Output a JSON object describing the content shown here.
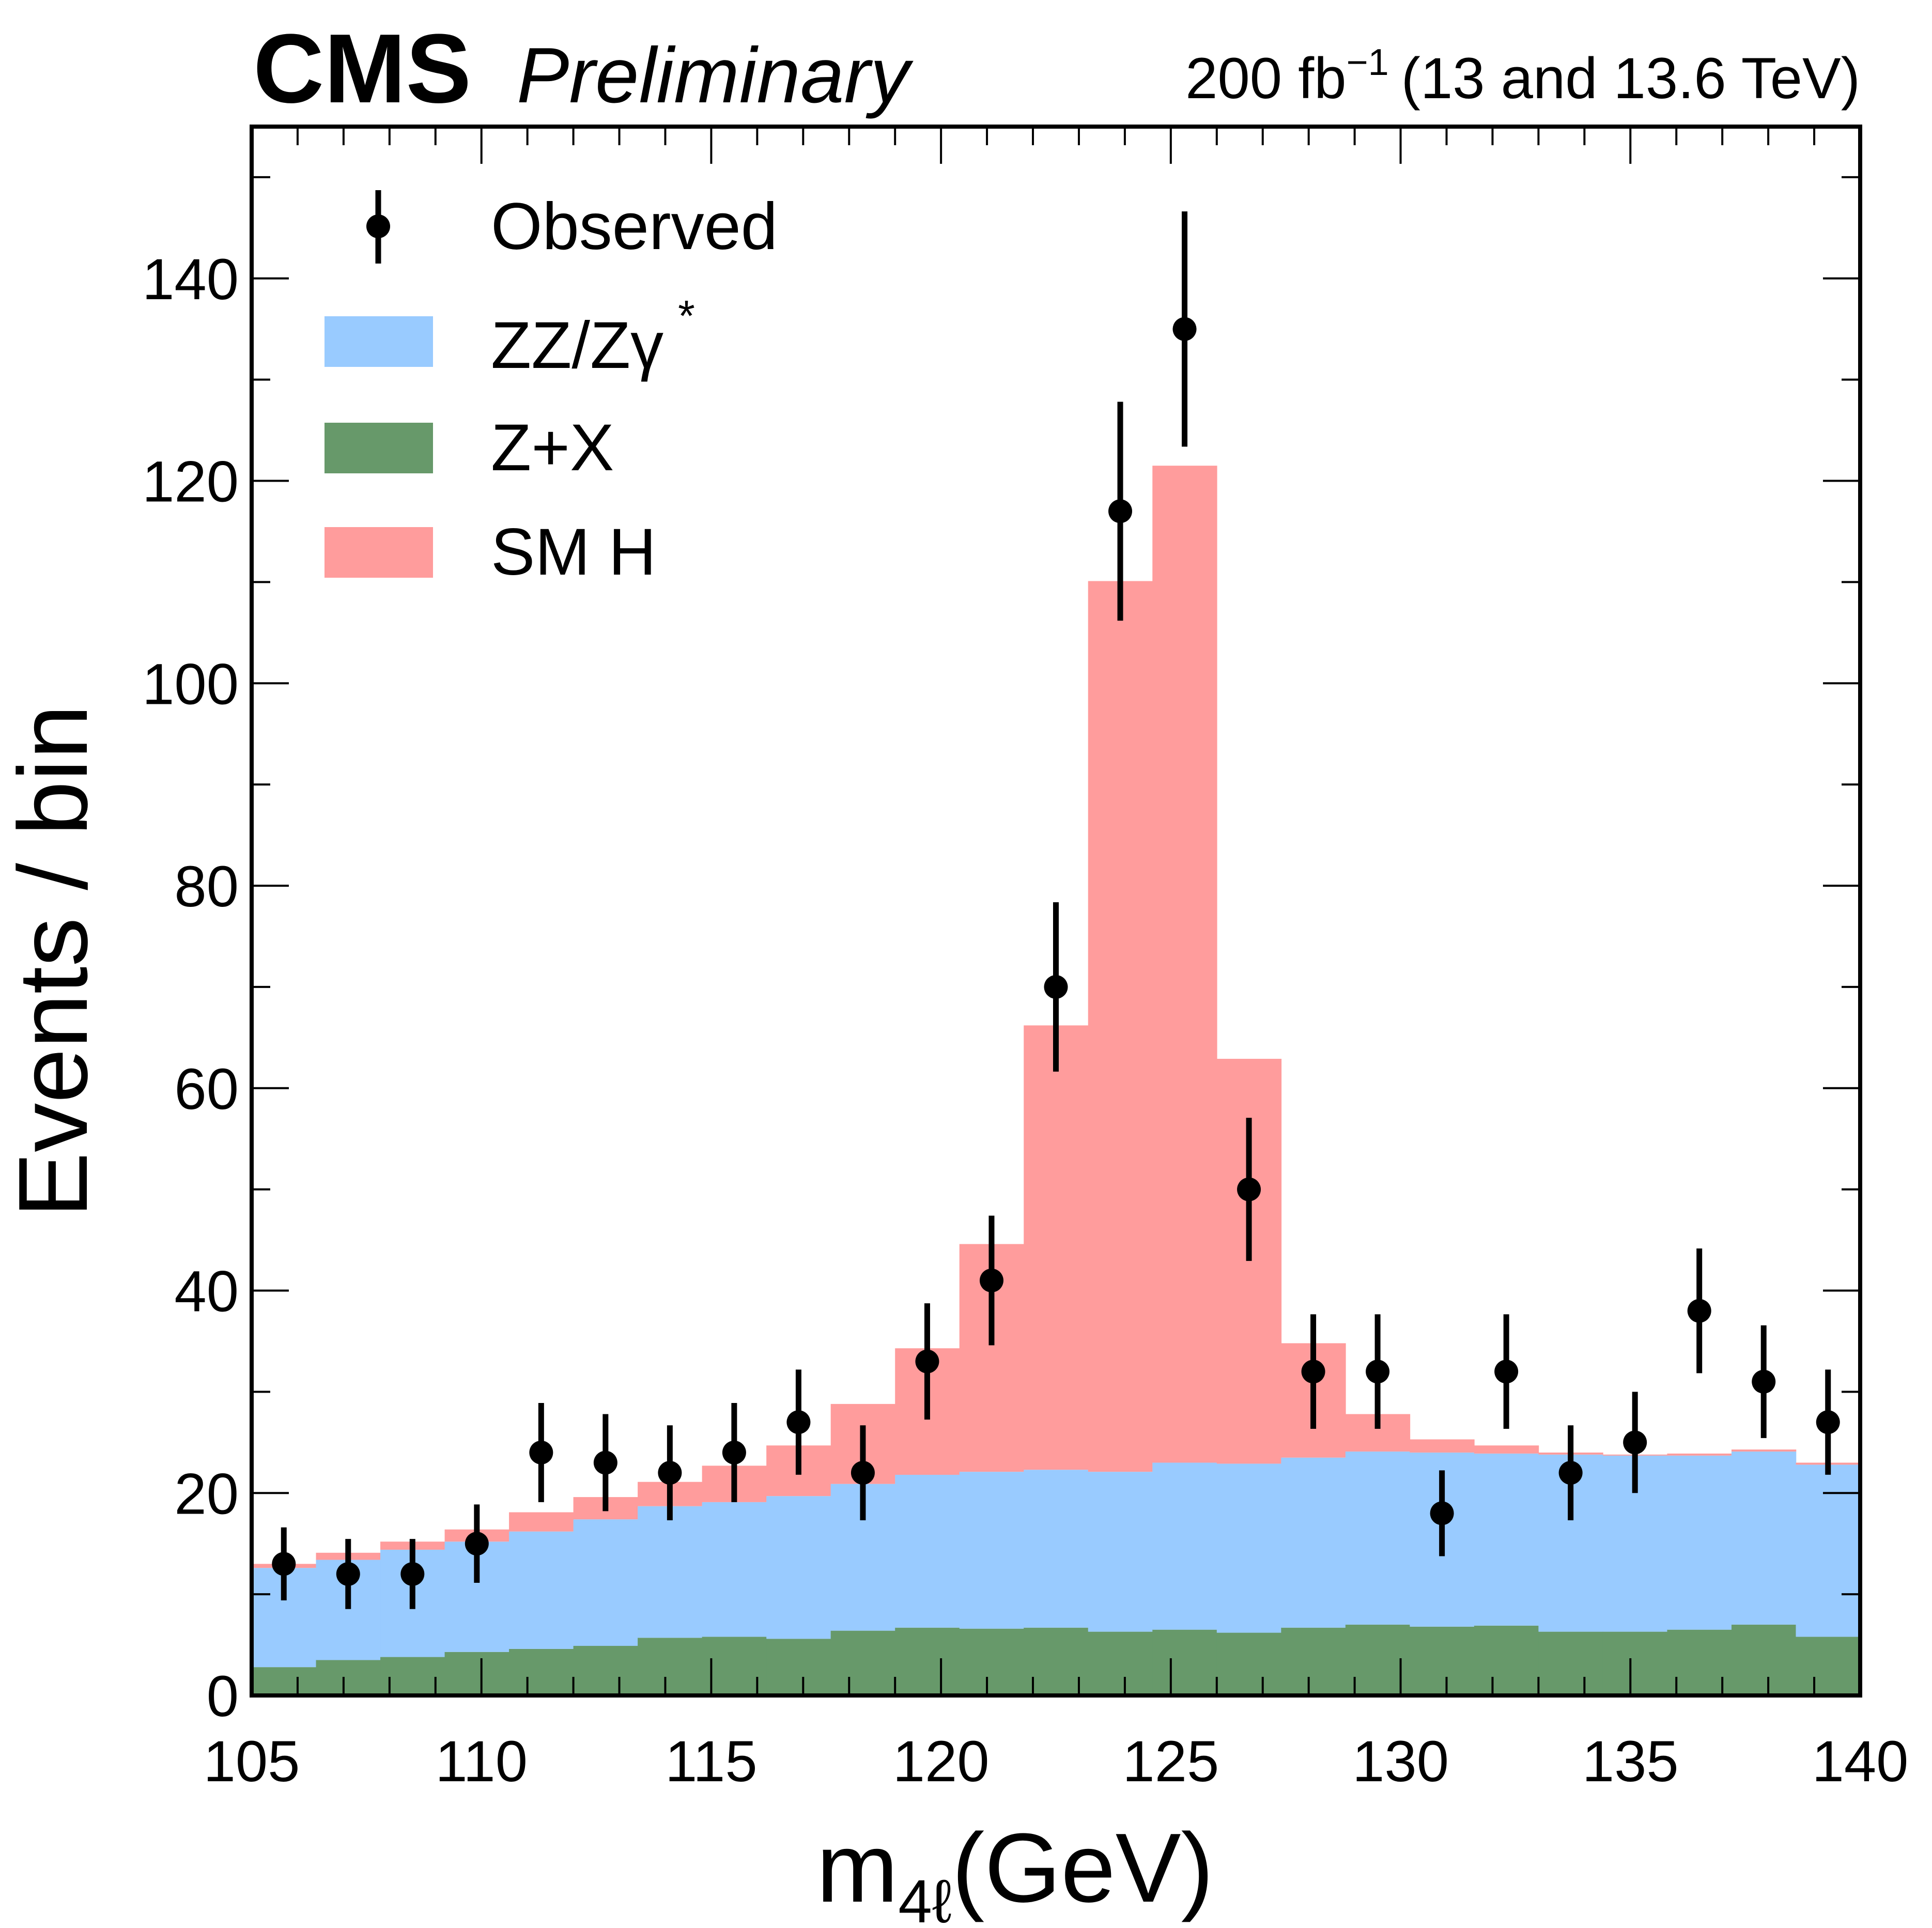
{
  "header": {
    "experiment": "CMS",
    "status": "Preliminary",
    "lumi_value": "200 fb",
    "lumi_exp": "−1",
    "lumi_energy": "(13 and 13.6 TeV)"
  },
  "axes": {
    "ylabel": "Events / bin",
    "xlabel_main": "m",
    "xlabel_sub": "4ℓ",
    "xlabel_unit": "(GeV)"
  },
  "legend": {
    "observed": "Observed",
    "zz_main": "ZZ/Zγ",
    "zz_sup": "*",
    "zx": "Z+X",
    "smh": "SM H"
  },
  "colors": {
    "zz": "#99cbff",
    "zx": "#67996a",
    "smh": "#ff9c9c",
    "observed": "#000000"
  },
  "chart_data": {
    "type": "bar",
    "stacked": true,
    "histogram": true,
    "xlim": [
      105,
      140
    ],
    "ylim": [
      0,
      155
    ],
    "x_ticks": [
      105,
      110,
      115,
      120,
      125,
      130,
      135,
      140
    ],
    "y_ticks": [
      0,
      20,
      40,
      60,
      80,
      100,
      120,
      140
    ],
    "bin_edges": [
      105,
      106.4,
      107.8,
      109.2,
      110.6,
      112,
      113.4,
      114.8,
      116.2,
      117.6,
      119,
      120.4,
      121.8,
      123.2,
      124.6,
      126,
      127.4,
      128.8,
      130.2,
      131.6,
      133,
      134.4,
      135.8,
      137.2,
      138.6,
      140
    ],
    "series": [
      {
        "name": "Z+X",
        "values": [
          2.8,
          3.5,
          3.8,
          4.3,
          4.6,
          4.9,
          5.7,
          5.8,
          5.6,
          6.4,
          6.7,
          6.6,
          6.7,
          6.3,
          6.5,
          6.2,
          6.7,
          7.0,
          6.8,
          6.9,
          6.3,
          6.3,
          6.5,
          7.0,
          5.8
        ]
      },
      {
        "name": "ZZ/Zγ*",
        "values": [
          9.8,
          9.9,
          10.6,
          10.9,
          11.6,
          12.5,
          13.0,
          13.3,
          14.1,
          14.5,
          15.1,
          15.5,
          15.6,
          15.8,
          16.5,
          16.7,
          16.8,
          17.1,
          17.2,
          17.0,
          17.5,
          17.4,
          17.2,
          17.1,
          17.0
        ]
      },
      {
        "name": "SM H",
        "values": [
          0.4,
          0.7,
          0.8,
          1.2,
          1.9,
          2.2,
          2.4,
          3.6,
          5.0,
          7.9,
          12.5,
          22.5,
          43.9,
          88.0,
          98.5,
          40.0,
          11.3,
          3.7,
          1.3,
          0.8,
          0.2,
          0.1,
          0.2,
          0.2,
          0.2
        ]
      }
    ],
    "observed": {
      "name": "Observed",
      "x": [
        105.7,
        107.1,
        108.5,
        109.9,
        111.3,
        112.7,
        114.1,
        115.5,
        116.9,
        118.3,
        119.7,
        121.1,
        122.5,
        123.9,
        125.3,
        126.7,
        128.1,
        129.5,
        130.9,
        132.3,
        133.7,
        135.1,
        136.5,
        137.9,
        139.3
      ],
      "y": [
        13,
        12,
        12,
        15,
        24,
        23,
        22,
        24,
        27,
        22,
        33,
        41,
        70,
        117,
        135,
        50,
        32,
        32,
        18,
        32,
        22,
        25,
        38,
        31,
        27
      ]
    }
  }
}
